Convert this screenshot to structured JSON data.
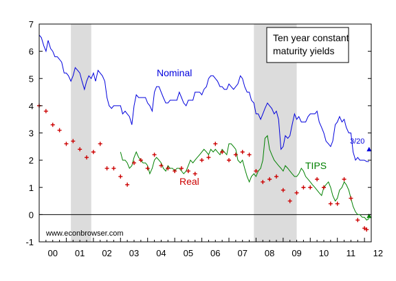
{
  "chart_data": {
    "type": "line",
    "title": "Ten year constant maturity yields",
    "xlabel": "",
    "ylabel": "",
    "x_tick_labels": [
      "00",
      "01",
      "02",
      "03",
      "04",
      "05",
      "06",
      "07",
      "08",
      "09",
      "10",
      "11",
      "12"
    ],
    "y_tick_labels": [
      "-1",
      "0",
      "1",
      "2",
      "3",
      "4",
      "5",
      "6",
      "7"
    ],
    "xlim": [
      2000.0,
      2012.25
    ],
    "ylim": [
      -1,
      7
    ],
    "zero_line": true,
    "recession_shading": [
      [
        2001.17,
        2001.92
      ],
      [
        2007.92,
        2009.5
      ]
    ],
    "annotations": [
      {
        "text": "Nominal",
        "series": "Nominal"
      },
      {
        "text": "Real",
        "series": "Real"
      },
      {
        "text": "TIPS",
        "series": "TIPS"
      },
      {
        "text": "3/20",
        "note": "latest-nominal"
      },
      {
        "text": "www.econbrowser.com",
        "note": "source"
      }
    ],
    "series": [
      {
        "name": "Nominal",
        "style": "line",
        "color": "#0000dd",
        "x": [
          2000.0,
          2000.08,
          2000.17,
          2000.25,
          2000.33,
          2000.42,
          2000.5,
          2000.58,
          2000.67,
          2000.75,
          2000.83,
          2000.92,
          2001.0,
          2001.08,
          2001.17,
          2001.25,
          2001.33,
          2001.42,
          2001.5,
          2001.58,
          2001.67,
          2001.75,
          2001.83,
          2001.92,
          2002.0,
          2002.08,
          2002.17,
          2002.25,
          2002.33,
          2002.42,
          2002.5,
          2002.58,
          2002.67,
          2002.75,
          2002.83,
          2002.92,
          2003.0,
          2003.08,
          2003.17,
          2003.25,
          2003.33,
          2003.42,
          2003.5,
          2003.58,
          2003.67,
          2003.75,
          2003.83,
          2003.92,
          2004.0,
          2004.08,
          2004.17,
          2004.25,
          2004.33,
          2004.42,
          2004.5,
          2004.58,
          2004.67,
          2004.75,
          2004.83,
          2004.92,
          2005.0,
          2005.08,
          2005.17,
          2005.25,
          2005.33,
          2005.42,
          2005.5,
          2005.58,
          2005.67,
          2005.75,
          2005.83,
          2005.92,
          2006.0,
          2006.08,
          2006.17,
          2006.25,
          2006.33,
          2006.42,
          2006.5,
          2006.58,
          2006.67,
          2006.75,
          2006.83,
          2006.92,
          2007.0,
          2007.08,
          2007.17,
          2007.25,
          2007.33,
          2007.42,
          2007.5,
          2007.58,
          2007.67,
          2007.75,
          2007.83,
          2007.92,
          2008.0,
          2008.08,
          2008.17,
          2008.25,
          2008.33,
          2008.42,
          2008.5,
          2008.58,
          2008.67,
          2008.75,
          2008.83,
          2008.92,
          2009.0,
          2009.08,
          2009.17,
          2009.25,
          2009.33,
          2009.42,
          2009.5,
          2009.58,
          2009.67,
          2009.75,
          2009.83,
          2009.92,
          2010.0,
          2010.08,
          2010.17,
          2010.25,
          2010.33,
          2010.42,
          2010.5,
          2010.58,
          2010.67,
          2010.75,
          2010.83,
          2010.92,
          2011.0,
          2011.08,
          2011.17,
          2011.25,
          2011.33,
          2011.42,
          2011.5,
          2011.58,
          2011.67,
          2011.75,
          2011.83,
          2011.92,
          2012.0,
          2012.08,
          2012.17
        ],
        "y": [
          6.6,
          6.5,
          6.2,
          6.0,
          6.4,
          6.1,
          6.0,
          5.8,
          5.8,
          5.7,
          5.6,
          5.2,
          5.2,
          5.1,
          4.9,
          5.1,
          5.4,
          5.3,
          5.2,
          4.9,
          4.6,
          4.9,
          5.1,
          5.0,
          5.2,
          4.9,
          5.3,
          5.2,
          5.1,
          4.9,
          4.3,
          4.0,
          3.9,
          4.0,
          4.0,
          4.0,
          4.0,
          3.7,
          3.8,
          3.7,
          3.6,
          3.3,
          4.0,
          4.4,
          4.3,
          4.3,
          4.3,
          4.3,
          4.1,
          4.0,
          3.8,
          4.5,
          4.7,
          4.7,
          4.5,
          4.3,
          4.1,
          4.1,
          4.2,
          4.2,
          4.2,
          4.2,
          4.5,
          4.3,
          4.1,
          4.0,
          4.2,
          4.2,
          4.2,
          4.5,
          4.5,
          4.5,
          4.4,
          4.6,
          4.7,
          5.0,
          5.1,
          5.1,
          5.0,
          4.9,
          4.7,
          4.7,
          4.6,
          4.6,
          4.8,
          4.7,
          4.6,
          4.7,
          4.8,
          5.1,
          5.0,
          4.7,
          4.5,
          4.5,
          4.2,
          4.1,
          3.7,
          3.7,
          3.5,
          3.7,
          3.9,
          4.1,
          4.0,
          3.9,
          3.7,
          3.8,
          3.5,
          2.4,
          2.5,
          2.9,
          2.8,
          2.9,
          3.3,
          3.7,
          3.5,
          3.6,
          3.4,
          3.4,
          3.4,
          3.6,
          3.7,
          3.7,
          3.7,
          3.8,
          3.4,
          3.2,
          3.0,
          2.7,
          2.6,
          2.5,
          2.7,
          3.3,
          3.4,
          3.6,
          3.4,
          3.5,
          3.2,
          3.0,
          3.0,
          2.3,
          2.0,
          2.1,
          2.0,
          2.0,
          2.0,
          1.95,
          1.95
        ]
      },
      {
        "name": "TIPS",
        "style": "line",
        "color": "#008000",
        "x": [
          2003.0,
          2003.08,
          2003.17,
          2003.25,
          2003.33,
          2003.42,
          2003.5,
          2003.58,
          2003.67,
          2003.75,
          2003.83,
          2003.92,
          2004.0,
          2004.08,
          2004.17,
          2004.25,
          2004.33,
          2004.42,
          2004.5,
          2004.58,
          2004.67,
          2004.75,
          2004.83,
          2004.92,
          2005.0,
          2005.08,
          2005.17,
          2005.25,
          2005.33,
          2005.42,
          2005.5,
          2005.58,
          2005.67,
          2005.75,
          2005.83,
          2005.92,
          2006.0,
          2006.08,
          2006.17,
          2006.25,
          2006.33,
          2006.42,
          2006.5,
          2006.58,
          2006.67,
          2006.75,
          2006.83,
          2006.92,
          2007.0,
          2007.08,
          2007.17,
          2007.25,
          2007.33,
          2007.42,
          2007.5,
          2007.58,
          2007.67,
          2007.75,
          2007.83,
          2007.92,
          2008.0,
          2008.08,
          2008.17,
          2008.25,
          2008.33,
          2008.42,
          2008.5,
          2008.58,
          2008.67,
          2008.75,
          2008.83,
          2008.92,
          2009.0,
          2009.08,
          2009.17,
          2009.25,
          2009.33,
          2009.42,
          2009.5,
          2009.58,
          2009.67,
          2009.75,
          2009.83,
          2009.92,
          2010.0,
          2010.08,
          2010.17,
          2010.25,
          2010.33,
          2010.42,
          2010.5,
          2010.58,
          2010.67,
          2010.75,
          2010.83,
          2010.92,
          2011.0,
          2011.08,
          2011.17,
          2011.25,
          2011.33,
          2011.42,
          2011.5,
          2011.58,
          2011.67,
          2011.75,
          2011.83,
          2011.92,
          2012.0,
          2012.08,
          2012.17
        ],
        "y": [
          2.3,
          2.0,
          2.0,
          1.9,
          1.7,
          1.8,
          2.1,
          2.3,
          2.1,
          2.0,
          1.9,
          1.9,
          1.8,
          1.5,
          1.7,
          2.0,
          2.1,
          2.0,
          1.9,
          1.7,
          1.6,
          1.8,
          1.7,
          1.7,
          1.6,
          1.7,
          1.7,
          1.6,
          1.5,
          1.6,
          1.8,
          2.0,
          1.9,
          2.0,
          2.1,
          2.2,
          2.3,
          2.4,
          2.3,
          2.2,
          2.4,
          2.3,
          2.4,
          2.3,
          2.2,
          2.4,
          2.3,
          2.2,
          2.6,
          2.6,
          2.5,
          2.4,
          2.0,
          1.9,
          2.0,
          1.7,
          1.4,
          1.2,
          1.4,
          1.5,
          1.4,
          1.6,
          1.7,
          2.0,
          2.8,
          2.9,
          2.4,
          2.2,
          2.0,
          1.9,
          1.8,
          1.7,
          1.6,
          1.8,
          1.7,
          1.6,
          1.5,
          1.4,
          1.4,
          1.5,
          1.7,
          1.6,
          1.4,
          1.3,
          1.2,
          1.1,
          1.0,
          0.9,
          0.8,
          0.7,
          1.0,
          1.1,
          1.2,
          1.0,
          0.7,
          0.5,
          0.6,
          0.9,
          1.0,
          1.2,
          1.1,
          0.9,
          0.6,
          0.3,
          0.1,
          0.0,
          0.0,
          -0.1,
          -0.1,
          -0.2,
          -0.15
        ]
      },
      {
        "name": "Real",
        "style": "markers",
        "color": "#cc0000",
        "x": [
          2000.0,
          2000.25,
          2000.5,
          2000.75,
          2001.0,
          2001.25,
          2001.5,
          2001.75,
          2002.0,
          2002.25,
          2002.5,
          2002.75,
          2003.0,
          2003.25,
          2003.5,
          2003.75,
          2004.0,
          2004.25,
          2004.5,
          2004.75,
          2005.0,
          2005.25,
          2005.5,
          2005.75,
          2006.0,
          2006.25,
          2006.5,
          2006.75,
          2007.0,
          2007.25,
          2007.5,
          2007.75,
          2008.0,
          2008.25,
          2008.5,
          2008.75,
          2009.0,
          2009.25,
          2009.5,
          2009.75,
          2010.0,
          2010.25,
          2010.5,
          2010.75,
          2011.0,
          2011.25,
          2011.5,
          2011.75,
          2012.0
        ],
        "y": [
          4.0,
          3.8,
          3.3,
          3.1,
          2.6,
          2.7,
          2.4,
          2.1,
          2.3,
          2.6,
          1.7,
          1.7,
          1.4,
          1.1,
          1.9,
          2.0,
          1.7,
          2.2,
          1.8,
          1.7,
          1.6,
          1.7,
          1.6,
          1.5,
          2.0,
          2.1,
          2.6,
          2.3,
          2.0,
          2.2,
          2.3,
          2.2,
          1.6,
          1.2,
          1.3,
          1.4,
          0.9,
          0.5,
          0.8,
          1.0,
          1.0,
          1.3,
          1.0,
          0.4,
          0.4,
          1.3,
          0.6,
          -0.2,
          -0.5
        ]
      },
      {
        "name": "Real",
        "style": "end-marker",
        "color": "#cc0000",
        "x": [
          2012.08
        ],
        "y": [
          -0.55
        ]
      }
    ],
    "end_markers": [
      {
        "series": "Nominal",
        "shape": "triangle",
        "color": "#0000dd",
        "x": 2012.17,
        "y": 2.4
      },
      {
        "series": "TIPS",
        "shape": "triangle",
        "color": "#008000",
        "x": 2012.17,
        "y": -0.05
      }
    ]
  }
}
